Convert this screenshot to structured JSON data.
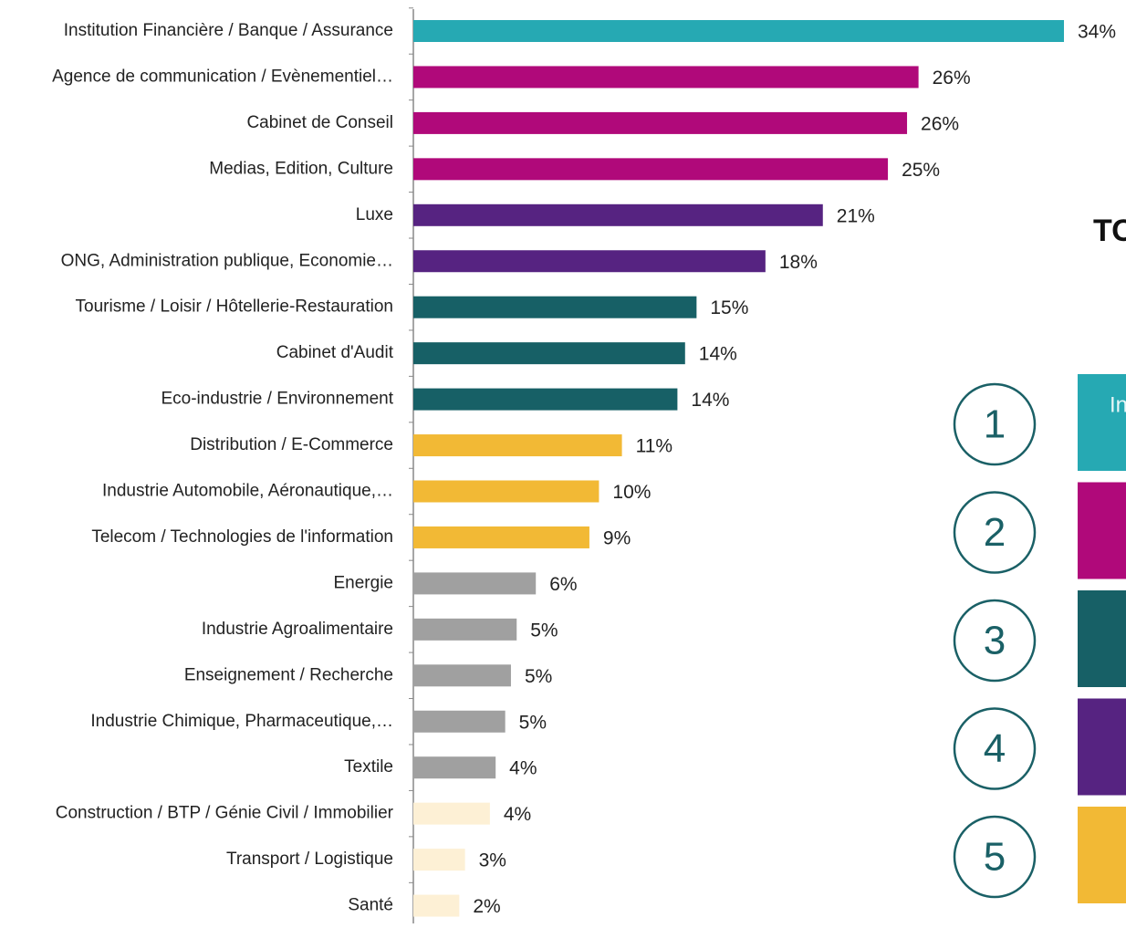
{
  "chart_data": {
    "type": "bar",
    "orientation": "horizontal",
    "categories": [
      "Institution Financière / Banque / Assurance",
      "Agence de communication / Evènementiel…",
      "Cabinet de Conseil",
      "Medias, Edition, Culture",
      "Luxe",
      "ONG, Administration publique, Economie…",
      "Tourisme / Loisir / Hôtellerie-Restauration",
      "Cabinet d'Audit",
      "Eco-industrie / Environnement",
      "Distribution / E-Commerce",
      "Industrie Automobile, Aéronautique,…",
      "Telecom / Technologies de l'information",
      "Energie",
      "Industrie Agroalimentaire",
      "Enseignement / Recherche",
      "Industrie Chimique, Pharmaceutique,…",
      "Textile",
      "Construction / BTP / Génie Civil / Immobilier",
      "Transport / Logistique",
      "Santé"
    ],
    "values": [
      34,
      26.4,
      25.8,
      24.8,
      21.4,
      18.4,
      14.8,
      14.2,
      13.8,
      10.9,
      9.7,
      9.2,
      6.4,
      5.4,
      5.1,
      4.8,
      4.3,
      4.0,
      2.7,
      2.4
    ],
    "value_labels": [
      "34%",
      "26%",
      "26%",
      "25%",
      "21%",
      "18%",
      "15%",
      "14%",
      "14%",
      "11%",
      "10%",
      "9%",
      "6%",
      "5%",
      "5%",
      "5%",
      "4%",
      "4%",
      "3%",
      "2%"
    ],
    "colors": [
      "#26a9b3",
      "#b0097a",
      "#b0097a",
      "#b0097a",
      "#562381",
      "#562381",
      "#176066",
      "#176066",
      "#176066",
      "#f2b935",
      "#f2b935",
      "#f2b935",
      "#a0a0a0",
      "#a0a0a0",
      "#a0a0a0",
      "#a0a0a0",
      "#a0a0a0",
      "#fdf0d5",
      "#fdf0d5",
      "#fdf0d5"
    ]
  },
  "side_panel": {
    "title": "TO",
    "items": [
      {
        "number": "1",
        "label": "In",
        "color": "#26a9b3"
      },
      {
        "number": "2",
        "color": "#b0097a"
      },
      {
        "number": "3",
        "color": "#176066"
      },
      {
        "number": "4",
        "color": "#562381"
      },
      {
        "number": "5",
        "color": "#f2b935"
      }
    ]
  }
}
